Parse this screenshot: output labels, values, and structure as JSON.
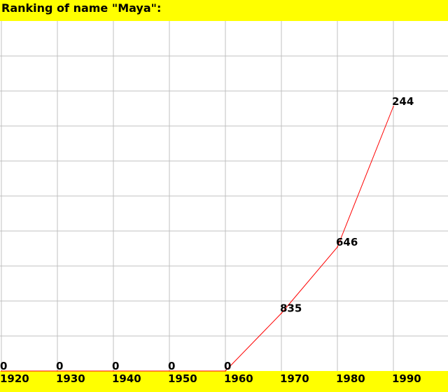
{
  "header": {
    "title": "Ranking of name \"Maya\":"
  },
  "chart_data": {
    "type": "line",
    "x": [
      1920,
      1930,
      1940,
      1950,
      1960,
      1970,
      1980,
      1990
    ],
    "series": [
      {
        "values": [
          0,
          0,
          0,
          0,
          0,
          835,
          646,
          244
        ]
      }
    ],
    "value_labels": [
      "0",
      "0",
      "0",
      "0",
      "0",
      "835",
      "646",
      "244"
    ],
    "tick_labels": [
      "1920",
      "1930",
      "1940",
      "1950",
      "1960",
      "1970",
      "1980",
      "1990"
    ],
    "rank_max": 1000,
    "grid": true,
    "line_color": "#ff0000",
    "grid_color": "#c0c0c0",
    "bar_color": "#ffff00"
  }
}
